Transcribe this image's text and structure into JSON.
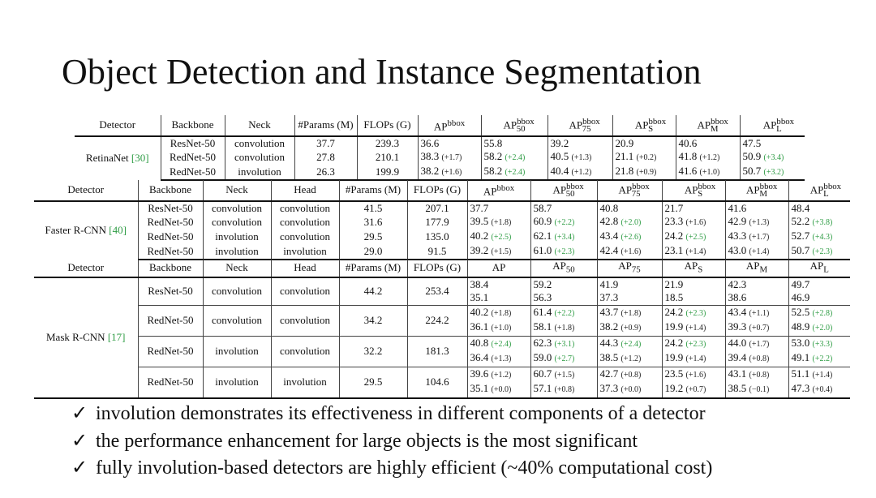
{
  "title": "Object Detection and Instance Segmentation",
  "table1": {
    "headers": [
      "Detector",
      "Backbone",
      "Neck",
      "#Params (M)",
      "FLOPs (G)",
      "AP^bbox",
      "AP^bbox_50",
      "AP^bbox_75",
      "AP^bbox_S",
      "AP^bbox_M",
      "AP^bbox_L"
    ],
    "detector": "RetinaNet [30]",
    "rows": [
      {
        "backbone": "ResNet-50",
        "neck": "convolution",
        "params": "37.7",
        "flops": "239.3",
        "ap": [
          "36.6",
          "55.8",
          "39.2",
          "20.9",
          "40.6",
          "47.5"
        ],
        "delta": [
          "",
          "",
          "",
          "",
          "",
          ""
        ]
      },
      {
        "backbone": "RedNet-50",
        "neck": "convolution",
        "params": "27.8",
        "flops": "210.1",
        "ap": [
          "38.3",
          "58.2",
          "40.5",
          "21.1",
          "41.8",
          "50.9"
        ],
        "delta": [
          "(+1.7)",
          "(+2.4)",
          "(+1.3)",
          "(+0.2)",
          "(+1.2)",
          "(+3.4)"
        ]
      },
      {
        "backbone": "RedNet-50",
        "neck": "involution",
        "params": "26.3",
        "flops": "199.9",
        "ap": [
          "38.2",
          "58.2",
          "40.4",
          "21.8",
          "41.6",
          "50.7"
        ],
        "delta": [
          "(+1.6)",
          "(+2.4)",
          "(+1.2)",
          "(+0.9)",
          "(+1.0)",
          "(+3.2)"
        ]
      }
    ]
  },
  "table2": {
    "detector": "Faster R-CNN [40]",
    "rows": [
      {
        "backbone": "ResNet-50",
        "neck": "convolution",
        "head": "convolution",
        "params": "41.5",
        "flops": "207.1",
        "ap": [
          "37.7",
          "58.7",
          "40.8",
          "21.7",
          "41.6",
          "48.4"
        ],
        "delta": [
          "",
          "",
          "",
          "",
          "",
          ""
        ]
      },
      {
        "backbone": "RedNet-50",
        "neck": "convolution",
        "head": "convolution",
        "params": "31.6",
        "flops": "177.9",
        "ap": [
          "39.5",
          "60.9",
          "42.8",
          "23.3",
          "42.9",
          "52.2"
        ],
        "delta": [
          "(+1.8)",
          "(+2.2)",
          "(+2.0)",
          "(+1.6)",
          "(+1.3)",
          "(+3.8)"
        ]
      },
      {
        "backbone": "RedNet-50",
        "neck": "involution",
        "head": "convolution",
        "params": "29.5",
        "flops": "135.0",
        "ap": [
          "40.2",
          "62.1",
          "43.4",
          "24.2",
          "43.3",
          "52.7"
        ],
        "delta": [
          "(+2.5)",
          "(+3.4)",
          "(+2.6)",
          "(+2.5)",
          "(+1.7)",
          "(+4.3)"
        ]
      },
      {
        "backbone": "RedNet-50",
        "neck": "involution",
        "head": "involution",
        "params": "29.0",
        "flops": "91.5",
        "ap": [
          "39.2",
          "61.0",
          "42.4",
          "23.1",
          "43.0",
          "50.7"
        ],
        "delta": [
          "(+1.5)",
          "(+2.3)",
          "(+1.6)",
          "(+1.4)",
          "(+1.4)",
          "(+2.3)"
        ]
      }
    ]
  },
  "table3": {
    "headers": [
      "Detector",
      "Backbone",
      "Neck",
      "Head",
      "#Params (M)",
      "FLOPs (G)",
      "AP",
      "AP50",
      "AP75",
      "APS",
      "APM",
      "APL"
    ],
    "detector": "Mask R-CNN [17]",
    "rows": [
      {
        "backbone": "ResNet-50",
        "neck": "convolution",
        "head": "convolution",
        "params": "44.2",
        "flops": "253.4",
        "bbox": [
          "38.4",
          "59.2",
          "41.9",
          "21.9",
          "42.3",
          "49.7"
        ],
        "bbox_delta": [
          "",
          "",
          "",
          "",
          "",
          ""
        ],
        "mask": [
          "35.1",
          "56.3",
          "37.3",
          "18.5",
          "38.6",
          "46.9"
        ],
        "mask_delta": [
          "",
          "",
          "",
          "",
          "",
          ""
        ]
      },
      {
        "backbone": "RedNet-50",
        "neck": "convolution",
        "head": "convolution",
        "params": "34.2",
        "flops": "224.2",
        "bbox": [
          "40.2",
          "61.4",
          "43.7",
          "24.2",
          "43.4",
          "52.5"
        ],
        "bbox_delta": [
          "(+1.8)",
          "(+2.2)",
          "(+1.8)",
          "(+2.3)",
          "(+1.1)",
          "(+2.8)"
        ],
        "mask": [
          "36.1",
          "58.1",
          "38.2",
          "19.9",
          "39.3",
          "48.9"
        ],
        "mask_delta": [
          "(+1.0)",
          "(+1.8)",
          "(+0.9)",
          "(+1.4)",
          "(+0.7)",
          "(+2.0)"
        ]
      },
      {
        "backbone": "RedNet-50",
        "neck": "involution",
        "head": "convolution",
        "params": "32.2",
        "flops": "181.3",
        "bbox": [
          "40.8",
          "62.3",
          "44.3",
          "24.2",
          "44.0",
          "53.0"
        ],
        "bbox_delta": [
          "(+2.4)",
          "(+3.1)",
          "(+2.4)",
          "(+2.3)",
          "(+1.7)",
          "(+3.3)"
        ],
        "mask": [
          "36.4",
          "59.0",
          "38.5",
          "19.9",
          "39.4",
          "49.1"
        ],
        "mask_delta": [
          "(+1.3)",
          "(+2.7)",
          "(+1.2)",
          "(+1.4)",
          "(+0.8)",
          "(+2.2)"
        ]
      },
      {
        "backbone": "RedNet-50",
        "neck": "involution",
        "head": "involution",
        "params": "29.5",
        "flops": "104.6",
        "bbox": [
          "39.6",
          "60.7",
          "42.7",
          "23.5",
          "43.1",
          "51.1"
        ],
        "bbox_delta": [
          "(+1.2)",
          "(+1.5)",
          "(+0.8)",
          "(+1.6)",
          "(+0.8)",
          "(+1.4)"
        ],
        "mask": [
          "35.1",
          "57.1",
          "37.3",
          "19.2",
          "38.5",
          "47.3"
        ],
        "mask_delta": [
          "(+0.0)",
          "(+0.8)",
          "(+0.0)",
          "(+0.7)",
          "(−0.1)",
          "(+0.4)"
        ]
      }
    ]
  },
  "bullets": [
    "involution demonstrates its effectiveness in different components of a detector",
    "the performance enhancement for large objects is the most significant",
    "fully involution-based detectors are highly efficient (~40% computational cost)"
  ],
  "colors": {
    "delta_positive": "#2e9c44",
    "citation": "#2e9c44",
    "text": "#111111"
  }
}
